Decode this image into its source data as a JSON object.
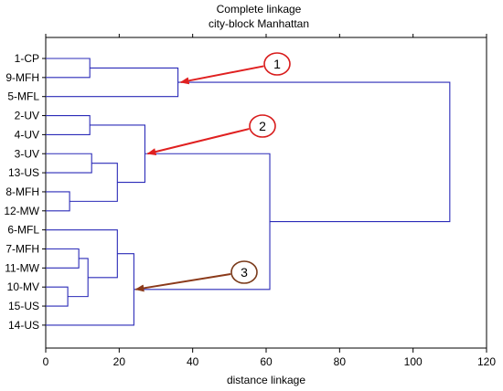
{
  "chart_data": {
    "type": "dendrogram",
    "title": "Complete linkage",
    "subtitle": "city-block Manhattan",
    "xlabel": "distance linkage",
    "xlim": [
      0,
      120
    ],
    "x_ticks": [
      "0",
      "20",
      "40",
      "60",
      "80",
      "100",
      "120"
    ],
    "x_tick_values": [
      0,
      20,
      40,
      60,
      80,
      100,
      120
    ],
    "grid": false,
    "leaves": [
      "1-CP",
      "9-MFH",
      "5-MFL",
      "2-UV",
      "4-UV",
      "3-UV",
      "13-US",
      "8-MFH",
      "12-MW",
      "6-MFL",
      "7-MFH",
      "11-MW",
      "10-MV",
      "15-US",
      "14-US"
    ],
    "merges": [
      {
        "id": "A",
        "a": "L0",
        "b": "L1",
        "height": 12
      },
      {
        "id": "B",
        "a": "A",
        "b": "L2",
        "height": 36
      },
      {
        "id": "C",
        "a": "L3",
        "b": "L4",
        "height": 12
      },
      {
        "id": "D",
        "a": "L5",
        "b": "L6",
        "height": 12.5
      },
      {
        "id": "E",
        "a": "L7",
        "b": "L8",
        "height": 6.5
      },
      {
        "id": "F",
        "a": "D",
        "b": "E",
        "height": 19.5
      },
      {
        "id": "G",
        "a": "C",
        "b": "F",
        "height": 27
      },
      {
        "id": "H",
        "a": "L10",
        "b": "L11",
        "height": 9
      },
      {
        "id": "I",
        "a": "L12",
        "b": "L13",
        "height": 6
      },
      {
        "id": "J",
        "a": "H",
        "b": "I",
        "height": 11.5
      },
      {
        "id": "K",
        "a": "L9",
        "b": "J",
        "height": 19.5
      },
      {
        "id": "M",
        "a": "K",
        "b": "L14",
        "height": 24
      },
      {
        "id": "N",
        "a": "G",
        "b": "M",
        "height": 61
      },
      {
        "id": "O",
        "a": "B",
        "b": "N",
        "height": 110
      }
    ],
    "line_color": "#2b2bb8",
    "annotations": [
      {
        "label": "1",
        "target_node": "B",
        "arrow_color": "#e02020",
        "circle_color": "#d81c1c",
        "text_color": "#000000"
      },
      {
        "label": "2",
        "target_node": "G",
        "arrow_color": "#e02020",
        "circle_color": "#d81c1c",
        "text_color": "#000000"
      },
      {
        "label": "3",
        "target_node": "M",
        "arrow_color": "#8b3a1a",
        "circle_color": "#7a3a1a",
        "text_color": "#000000"
      }
    ]
  }
}
